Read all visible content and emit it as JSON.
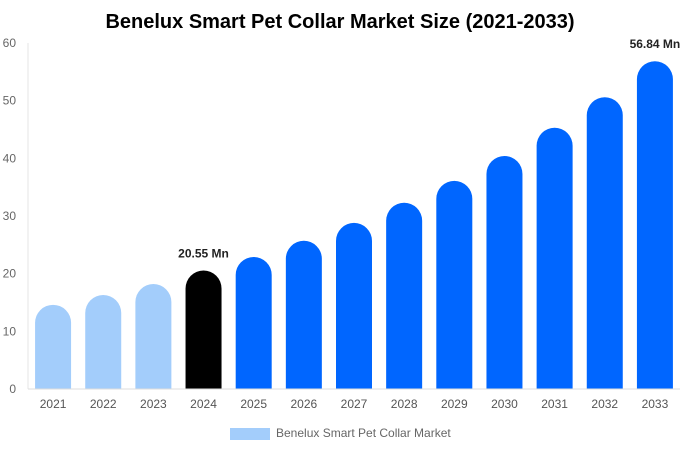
{
  "chart_data": {
    "type": "bar",
    "title": "Benelux Smart Pet Collar Market Size (2021-2033)",
    "xlabel": "",
    "ylabel": "",
    "ylim": [
      0,
      60
    ],
    "yticks": [
      0,
      10,
      20,
      30,
      40,
      50,
      60
    ],
    "grid": false,
    "legend_position": "bottom",
    "categories": [
      "2021",
      "2022",
      "2023",
      "2024",
      "2025",
      "2026",
      "2027",
      "2028",
      "2029",
      "2030",
      "2031",
      "2032",
      "2033"
    ],
    "series": [
      {
        "name": "Benelux Smart Pet Collar Market",
        "values": [
          14.6,
          16.3,
          18.2,
          20.55,
          22.9,
          25.7,
          28.8,
          32.3,
          36.1,
          40.4,
          45.3,
          50.6,
          56.84
        ]
      }
    ],
    "annotations": [
      {
        "category": "2024",
        "text": "20.55 Mn"
      },
      {
        "category": "2033",
        "text": "56.84 Mn"
      }
    ],
    "colors": {
      "historical": "#a3cdfb",
      "base_year": "#000000",
      "forecast": "#0066ff"
    }
  }
}
